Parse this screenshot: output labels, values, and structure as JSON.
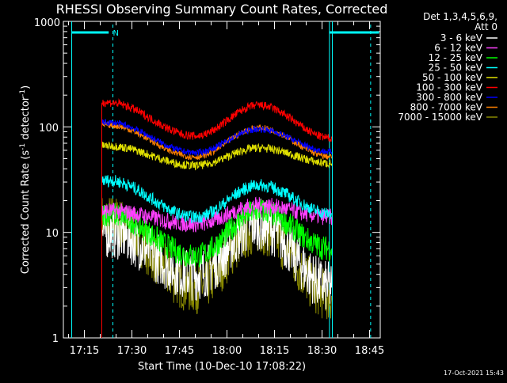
{
  "chart_data": {
    "type": "line",
    "title": "RHESSI Observing Summary Count Rates, Corrected",
    "xlabel": "Start Time (10-Dec-10 17:08:22)",
    "ylabel_main": "Corrected Count Rate (s",
    "ylabel_sup1": "-1",
    "ylabel_mid": " detector",
    "ylabel_sup2": "-1",
    "ylabel_end": ")",
    "yscale": "log",
    "ylim": [
      1,
      1000
    ],
    "xlim": [
      "17:08:22",
      "18:48:22"
    ],
    "x_ticks": [
      "17:15",
      "17:30",
      "17:45",
      "18:00",
      "18:15",
      "18:30",
      "18:45"
    ],
    "y_ticks": [
      "1",
      "10",
      "100",
      "1000"
    ],
    "legend_header": [
      "Det 1,3,4,5,6,9,",
      "Att 0"
    ],
    "timestamp": "17-Oct-2021 15:43",
    "data_start": "17:20:30",
    "data_end": "18:33:00",
    "night_marker": {
      "label": "N",
      "start": "17:11:00",
      "end": "17:22:40",
      "dashed": "17:24:00"
    },
    "night_marker2": {
      "start": "18:32:20",
      "end": "18:48:00",
      "dashed": "18:45:20"
    },
    "series": [
      {
        "name": "3 - 6 keV",
        "color": "#ffffff",
        "peaks": [
          10,
          4,
          12,
          3
        ],
        "noise": 0.25
      },
      {
        "name": "6 - 12 keV",
        "color": "#ff40ff",
        "peaks": [
          16,
          12,
          18,
          14
        ],
        "noise": 0.08
      },
      {
        "name": "12 - 25 keV",
        "color": "#00ff00",
        "peaks": [
          15,
          6,
          16,
          7
        ],
        "noise": 0.12
      },
      {
        "name": "25 - 50 keV",
        "color": "#00ffff",
        "peaks": [
          31,
          14,
          28,
          15
        ],
        "noise": 0.06
      },
      {
        "name": "50 - 100 keV",
        "color": "#e0e000",
        "peaks": [
          66,
          43,
          63,
          45
        ],
        "noise": 0.04
      },
      {
        "name": "100 - 300 keV",
        "color": "#ff0000",
        "peaks": [
          170,
          82,
          160,
          78
        ],
        "noise": 0.04
      },
      {
        "name": "300 - 800 keV",
        "color": "#0000ff",
        "peaks": [
          110,
          57,
          95,
          58
        ],
        "noise": 0.03
      },
      {
        "name": "800 - 7000 keV",
        "color": "#ff8000",
        "peaks": [
          104,
          52,
          98,
          52
        ],
        "noise": 0.03
      },
      {
        "name": "7000 - 15000 keV",
        "color": "#888800",
        "peaks": [
          13,
          3,
          11,
          2.5
        ],
        "noise": 0.25
      }
    ]
  }
}
